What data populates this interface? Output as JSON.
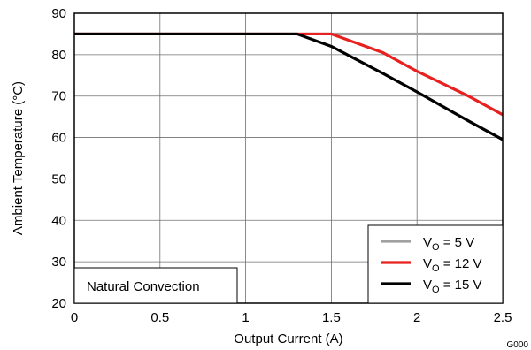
{
  "chart_data": {
    "type": "line",
    "title": "",
    "xlabel": "Output Current (A)",
    "ylabel": "Ambient Temperature (°C)",
    "xlim": [
      0,
      2.5
    ],
    "ylim": [
      20,
      90
    ],
    "xticks": [
      0,
      0.5,
      1,
      1.5,
      2,
      2.5
    ],
    "xtick_labels": [
      "0",
      "0.5",
      "1",
      "1.5",
      "2",
      "2.5"
    ],
    "yticks": [
      20,
      30,
      40,
      50,
      60,
      70,
      80,
      90
    ],
    "ytick_labels": [
      "20",
      "30",
      "40",
      "50",
      "60",
      "70",
      "80",
      "90"
    ],
    "grid": true,
    "legend_position": "bottom-right",
    "annotation": "Natural Convection",
    "figure_id": "G000",
    "series": [
      {
        "name_main": "V",
        "name_sub": "O",
        "name_rest": " = 5 V",
        "color": "#a0a0a0",
        "x": [
          0,
          2.5
        ],
        "y": [
          85,
          85
        ]
      },
      {
        "name_main": "V",
        "name_sub": "O",
        "name_rest": " = 12 V",
        "color": "#e8201f",
        "x": [
          0,
          1.5,
          1.8,
          2.0,
          2.3,
          2.5
        ],
        "y": [
          85,
          85,
          80.5,
          76,
          70,
          65.5
        ]
      },
      {
        "name_main": "V",
        "name_sub": "O",
        "name_rest": " = 15 V",
        "color": "#000000",
        "x": [
          0,
          1.3,
          1.5,
          1.8,
          2.0,
          2.3,
          2.5
        ],
        "y": [
          85,
          85,
          82,
          75.5,
          71,
          64,
          59.5
        ]
      }
    ]
  }
}
